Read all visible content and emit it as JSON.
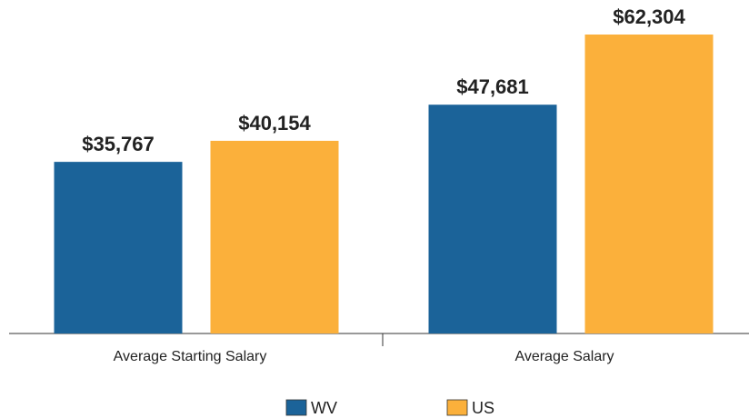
{
  "chart_data": {
    "type": "bar",
    "categories": [
      "Average Starting Salary",
      "Average Salary"
    ],
    "series": [
      {
        "name": "WV",
        "color": "#1b6399",
        "values": [
          35767,
          47681
        ],
        "value_labels": [
          "$35,767",
          "$47,681"
        ]
      },
      {
        "name": "US",
        "color": "#fbb03b",
        "values": [
          40154,
          62304
        ],
        "value_labels": [
          "$40,154",
          "$62,304"
        ]
      }
    ],
    "legend": "bottom"
  }
}
